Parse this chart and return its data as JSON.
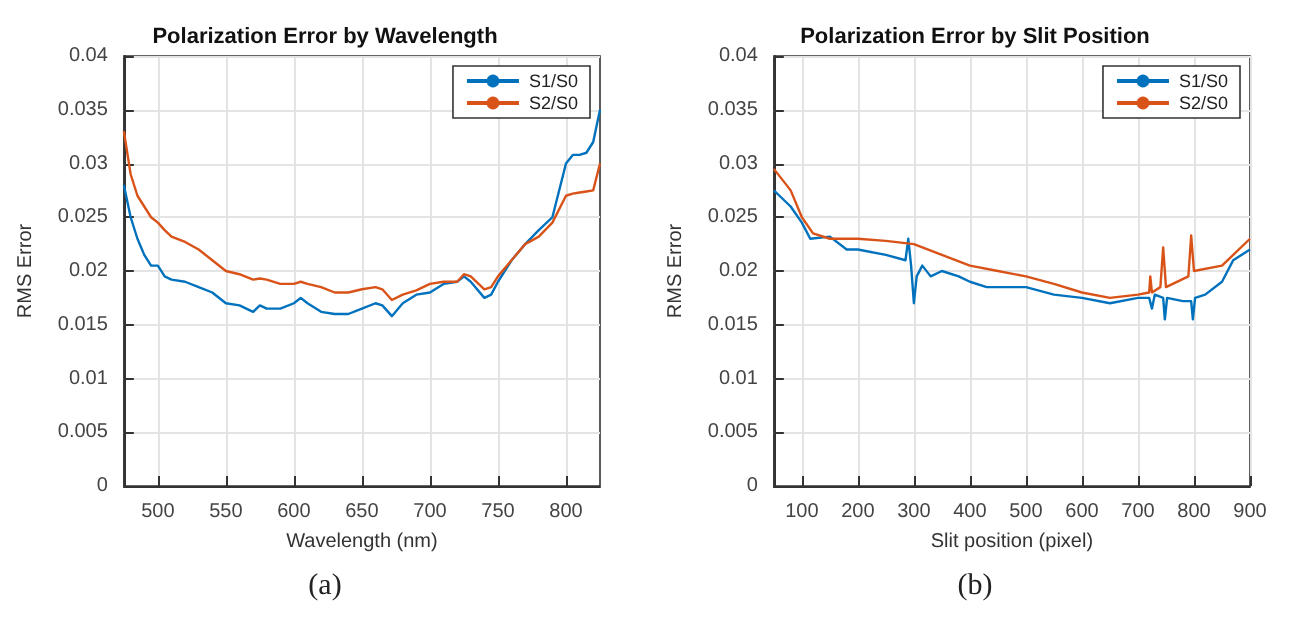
{
  "chart_data": [
    {
      "type": "line",
      "title": "Polarization Error by Wavelength",
      "xlabel": "Wavelength (nm)",
      "ylabel": "RMS Error",
      "annotations": [
        "(a)"
      ],
      "xlim": [
        475,
        825
      ],
      "xticks": [
        500,
        550,
        600,
        650,
        700,
        750,
        800
      ],
      "ylim": [
        0,
        0.04
      ],
      "yticks": [
        0,
        0.005,
        0.01,
        0.015,
        0.02,
        0.025,
        0.03,
        0.035,
        0.04
      ],
      "grid": true,
      "legend": "top right",
      "x": [
        475,
        480,
        485,
        490,
        495,
        500,
        505,
        510,
        520,
        530,
        540,
        550,
        560,
        570,
        575,
        580,
        590,
        600,
        605,
        610,
        620,
        630,
        640,
        650,
        660,
        665,
        672,
        680,
        690,
        700,
        710,
        720,
        725,
        730,
        740,
        745,
        750,
        760,
        770,
        780,
        790,
        800,
        805,
        810,
        815,
        820,
        825
      ],
      "series": [
        {
          "name": "S1/S0",
          "color": "#0072bd",
          "values": [
            0.028,
            0.025,
            0.023,
            0.0215,
            0.0205,
            0.0205,
            0.0195,
            0.0192,
            0.019,
            0.0185,
            0.018,
            0.017,
            0.0168,
            0.0162,
            0.0168,
            0.0165,
            0.0165,
            0.017,
            0.0175,
            0.017,
            0.0162,
            0.016,
            0.016,
            0.0165,
            0.017,
            0.0168,
            0.0158,
            0.017,
            0.0178,
            0.018,
            0.0188,
            0.019,
            0.0195,
            0.019,
            0.0175,
            0.0178,
            0.019,
            0.021,
            0.0225,
            0.0238,
            0.025,
            0.03,
            0.0308,
            0.0308,
            0.031,
            0.032,
            0.035
          ]
        },
        {
          "name": "S2/S0",
          "color": "#d95319",
          "values": [
            0.033,
            0.029,
            0.027,
            0.026,
            0.025,
            0.0245,
            0.0238,
            0.0232,
            0.0227,
            0.022,
            0.021,
            0.02,
            0.0197,
            0.0192,
            0.0193,
            0.0192,
            0.0188,
            0.0188,
            0.019,
            0.0188,
            0.0185,
            0.018,
            0.018,
            0.0183,
            0.0185,
            0.0183,
            0.0173,
            0.0178,
            0.0182,
            0.0188,
            0.019,
            0.019,
            0.0197,
            0.0195,
            0.0183,
            0.0185,
            0.0195,
            0.021,
            0.0225,
            0.0232,
            0.0245,
            0.027,
            0.0272,
            0.0273,
            0.0274,
            0.0275,
            0.03
          ]
        }
      ]
    },
    {
      "type": "line",
      "title": "Polarization Error by Slit Position",
      "xlabel": "Slit position (pixel)",
      "ylabel": "RMS Error",
      "annotations": [
        "(b)"
      ],
      "xlim": [
        50,
        900
      ],
      "xticks": [
        100,
        200,
        300,
        400,
        500,
        600,
        700,
        800,
        900
      ],
      "ylim": [
        0,
        0.04
      ],
      "yticks": [
        0,
        0.005,
        0.01,
        0.015,
        0.02,
        0.025,
        0.03,
        0.035,
        0.04
      ],
      "grid": true,
      "legend": "top right",
      "series": [
        {
          "name": "S1/S0",
          "color": "#0072bd",
          "x": [
            50,
            60,
            80,
            100,
            115,
            150,
            180,
            200,
            250,
            285,
            290,
            295,
            300,
            305,
            315,
            330,
            350,
            380,
            400,
            430,
            450,
            500,
            550,
            600,
            650,
            700,
            720,
            725,
            730,
            745,
            748,
            752,
            780,
            795,
            798,
            802,
            820,
            850,
            870,
            900
          ],
          "values": [
            0.0275,
            0.027,
            0.026,
            0.0245,
            0.023,
            0.0232,
            0.022,
            0.022,
            0.0215,
            0.021,
            0.023,
            0.0205,
            0.017,
            0.0195,
            0.0205,
            0.0195,
            0.02,
            0.0195,
            0.019,
            0.0185,
            0.0185,
            0.0185,
            0.0178,
            0.0175,
            0.017,
            0.0175,
            0.0175,
            0.0165,
            0.0178,
            0.0175,
            0.0155,
            0.0175,
            0.0172,
            0.0172,
            0.0155,
            0.0175,
            0.0178,
            0.019,
            0.021,
            0.022
          ]
        },
        {
          "name": "S2/S0",
          "color": "#d95319",
          "x": [
            50,
            80,
            100,
            120,
            150,
            200,
            250,
            300,
            350,
            400,
            450,
            500,
            550,
            600,
            650,
            700,
            720,
            722,
            725,
            740,
            745,
            750,
            790,
            795,
            800,
            850,
            900
          ],
          "values": [
            0.0295,
            0.0275,
            0.025,
            0.0235,
            0.023,
            0.023,
            0.0228,
            0.0225,
            0.0215,
            0.0205,
            0.02,
            0.0195,
            0.0188,
            0.018,
            0.0175,
            0.0178,
            0.018,
            0.0195,
            0.018,
            0.0185,
            0.0222,
            0.0185,
            0.0195,
            0.0233,
            0.02,
            0.0205,
            0.023
          ]
        }
      ]
    }
  ]
}
